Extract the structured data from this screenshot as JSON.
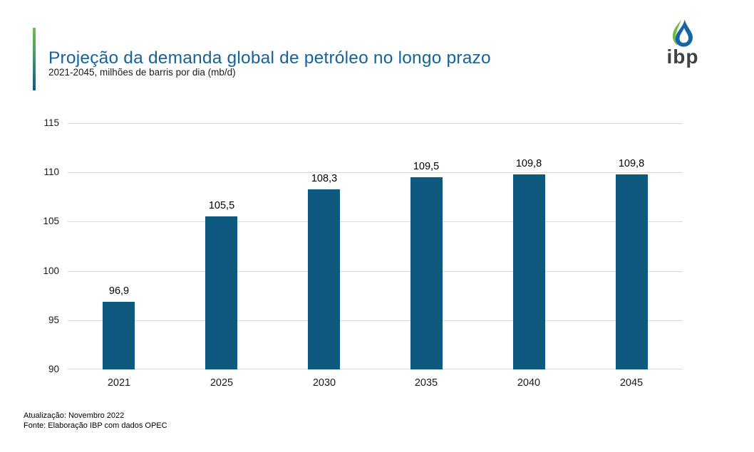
{
  "logo": {
    "text": "ibp"
  },
  "chart_data": {
    "type": "bar",
    "title": "Projeção da demanda global de petróleo no longo prazo",
    "subtitle": "2021-2045, milhões de barris por dia (mb/d)",
    "categories": [
      "2021",
      "2025",
      "2030",
      "2035",
      "2040",
      "2045"
    ],
    "values": [
      96.9,
      105.5,
      108.3,
      109.5,
      109.8,
      109.8
    ],
    "value_labels": [
      "96,9",
      "105,5",
      "108,3",
      "109,5",
      "109,8",
      "109,8"
    ],
    "xlabel": "",
    "ylabel": "",
    "ylim": [
      90,
      115
    ],
    "yticks": [
      90,
      95,
      100,
      105,
      110,
      115
    ],
    "grid": "horizontal",
    "legend": "none"
  },
  "footer": {
    "updated": "Atualização: Novembro 2022",
    "source": "Fonte: Elaboração IBP com dados OPEC"
  },
  "colors": {
    "bar": "#0e5a7e",
    "title": "#15639b",
    "gridline": "#d9d9d9",
    "accent_green": "#76bc43",
    "accent_blue": "#145687",
    "logo_blue": "#1565a5",
    "logo_green": "#76bc43",
    "logo_text": "#414042"
  }
}
